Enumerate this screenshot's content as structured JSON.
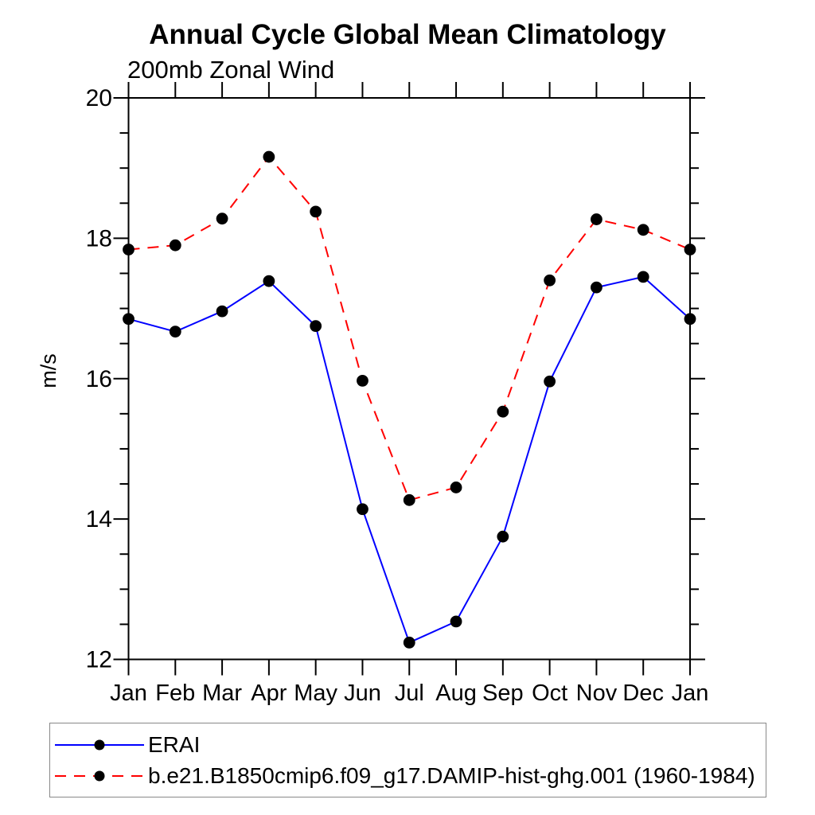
{
  "chart_data": {
    "type": "line",
    "title": "Annual Cycle Global Mean Climatology",
    "subtitle": "200mb Zonal Wind",
    "xlabel": "",
    "ylabel": "m/s",
    "categories": [
      "Jan",
      "Feb",
      "Mar",
      "Apr",
      "May",
      "Jun",
      "Jul",
      "Aug",
      "Sep",
      "Oct",
      "Nov",
      "Dec",
      "Jan"
    ],
    "ylim": [
      12,
      20
    ],
    "y_tick_labels": [
      "12",
      "14",
      "16",
      "18",
      "20"
    ],
    "y_major_tick_step": 2,
    "y_minor_tick_step": 0.5,
    "grid": false,
    "legend_position": "bottom-left box below plot",
    "axis_color": "#000000",
    "legend_border_color": "#888888",
    "series": [
      {
        "name": "ERAI",
        "color": "#0000ff",
        "line_style": "solid",
        "marker": "filled-circle",
        "marker_color": "#000000",
        "values": [
          16.85,
          16.67,
          16.96,
          17.39,
          16.75,
          14.14,
          12.24,
          12.54,
          13.75,
          15.96,
          17.3,
          17.45,
          16.85
        ]
      },
      {
        "name": "b.e21.B1850cmip6.f09_g17.DAMIP-hist-ghg.001 (1960-1984)",
        "color": "#ff0000",
        "line_style": "dashed",
        "marker": "filled-circle",
        "marker_color": "#000000",
        "values": [
          17.84,
          17.9,
          18.28,
          19.16,
          18.38,
          15.97,
          14.27,
          14.45,
          15.53,
          17.4,
          18.27,
          18.12,
          17.84
        ]
      }
    ]
  }
}
